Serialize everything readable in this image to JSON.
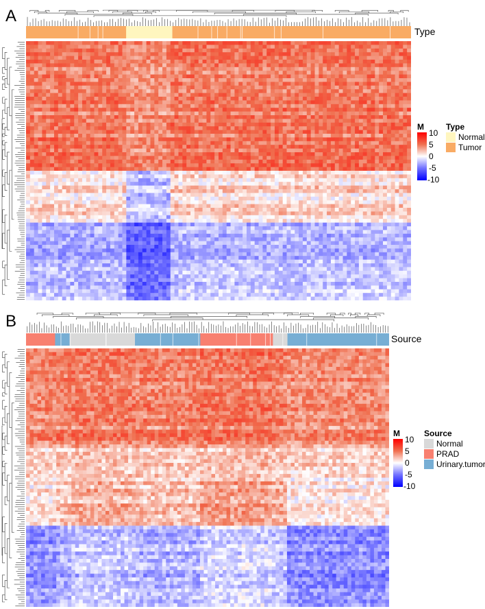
{
  "chart_data": [
    {
      "type": "heatmap",
      "panel": "A",
      "annotation_track": "Type",
      "colorbar": {
        "title": "M",
        "ticks": [
          "10",
          "5",
          "0",
          "-5",
          "-10"
        ],
        "range": [
          -10,
          10
        ]
      },
      "legend": {
        "title": "Type",
        "placement": "right",
        "items": [
          {
            "label": "Normal",
            "color": "#fff6bf"
          },
          {
            "label": "Tumor",
            "color": "#f9ab64"
          }
        ]
      },
      "column_groups": [
        {
          "label": "Tumor",
          "fraction": 0.26
        },
        {
          "label": "Normal",
          "fraction": 0.12
        },
        {
          "label": "Tumor",
          "fraction": 0.62
        }
      ],
      "row_clusters": [
        {
          "fraction": 0.5,
          "mean": 4.5
        },
        {
          "fraction": 0.2,
          "mean": 0.5
        },
        {
          "fraction": 0.3,
          "mean": -3.0
        }
      ],
      "dendrogram": {
        "rows": true,
        "columns": true
      }
    },
    {
      "type": "heatmap",
      "panel": "B",
      "annotation_track": "Source",
      "colorbar": {
        "title": "M",
        "ticks": [
          "10",
          "5",
          "0",
          "-5",
          "-10"
        ],
        "range": [
          -10,
          10
        ]
      },
      "legend": {
        "title": "Source",
        "placement": "right",
        "items": [
          {
            "label": "Normal",
            "color": "#d9d9d9"
          },
          {
            "label": "PRAD",
            "color": "#f88070"
          },
          {
            "label": "Urinary.tumor",
            "color": "#77aed4"
          }
        ]
      },
      "column_groups": [
        {
          "label": "PRAD",
          "fraction": 0.08
        },
        {
          "label": "Urinary.tumor",
          "fraction": 0.04
        },
        {
          "label": "Normal",
          "fraction": 0.18
        },
        {
          "label": "Urinary.tumor",
          "fraction": 0.18
        },
        {
          "label": "PRAD",
          "fraction": 0.2
        },
        {
          "label": "Normal",
          "fraction": 0.04
        },
        {
          "label": "Urinary.tumor",
          "fraction": 0.28
        }
      ],
      "row_clusters": [
        {
          "fraction": 0.38,
          "mean": 4.0
        },
        {
          "fraction": 0.3,
          "mean": 1.5
        },
        {
          "fraction": 0.32,
          "mean": -3.5
        }
      ],
      "dendrogram": {
        "rows": true,
        "columns": true
      }
    }
  ],
  "panel_a": {
    "letter": "A",
    "track_label": "Type"
  },
  "panel_b": {
    "letter": "B",
    "track_label": "Source"
  }
}
